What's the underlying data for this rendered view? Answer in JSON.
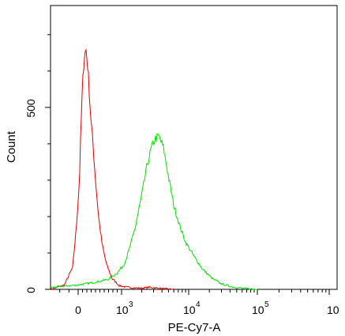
{
  "chart_data": {
    "type": "line",
    "title": "",
    "xlabel": "PE-Cy7-A",
    "ylabel": "Count",
    "x_scale": "biexponential",
    "xlim": [
      -300,
      1000000
    ],
    "ylim": [
      0,
      780
    ],
    "x_tick_labels": [
      {
        "base": "0",
        "exp": ""
      },
      {
        "base": "10",
        "exp": "3"
      },
      {
        "base": "10",
        "exp": "4"
      },
      {
        "base": "10",
        "exp": "5"
      },
      {
        "base": "10",
        "exp": ""
      }
    ],
    "y_ticks": [
      0,
      500
    ],
    "y_tick_labels": [
      "0",
      "500"
    ],
    "grid": false,
    "legend": "none",
    "series": [
      {
        "color": "#e00000",
        "x": [
          -300,
          -150,
          -60,
          -20,
          30,
          60,
          100,
          140,
          180,
          230,
          280,
          340,
          400,
          470,
          550,
          650,
          780,
          950,
          1200,
          1600,
          2000,
          2600,
          3200,
          4000,
          6000
        ],
        "y": [
          0,
          12,
          60,
          170,
          300,
          430,
          560,
          640,
          660,
          600,
          490,
          400,
          300,
          200,
          125,
          70,
          30,
          10,
          6,
          4,
          3,
          6,
          4,
          2,
          0
        ]
      },
      {
        "color": "#00e000",
        "x": [
          -300,
          -100,
          0,
          150,
          300,
          500,
          700,
          900,
          1100,
          1300,
          1600,
          2000,
          2400,
          2800,
          3200,
          3600,
          4200,
          5000,
          6000,
          7500,
          9000,
          12000,
          16000,
          22000,
          30000,
          45000,
          70000,
          100000
        ],
        "y": [
          5,
          10,
          12,
          15,
          18,
          22,
          28,
          45,
          70,
          110,
          170,
          260,
          340,
          390,
          415,
          420,
          390,
          310,
          230,
          170,
          130,
          90,
          55,
          30,
          15,
          6,
          2,
          0
        ]
      }
    ]
  }
}
